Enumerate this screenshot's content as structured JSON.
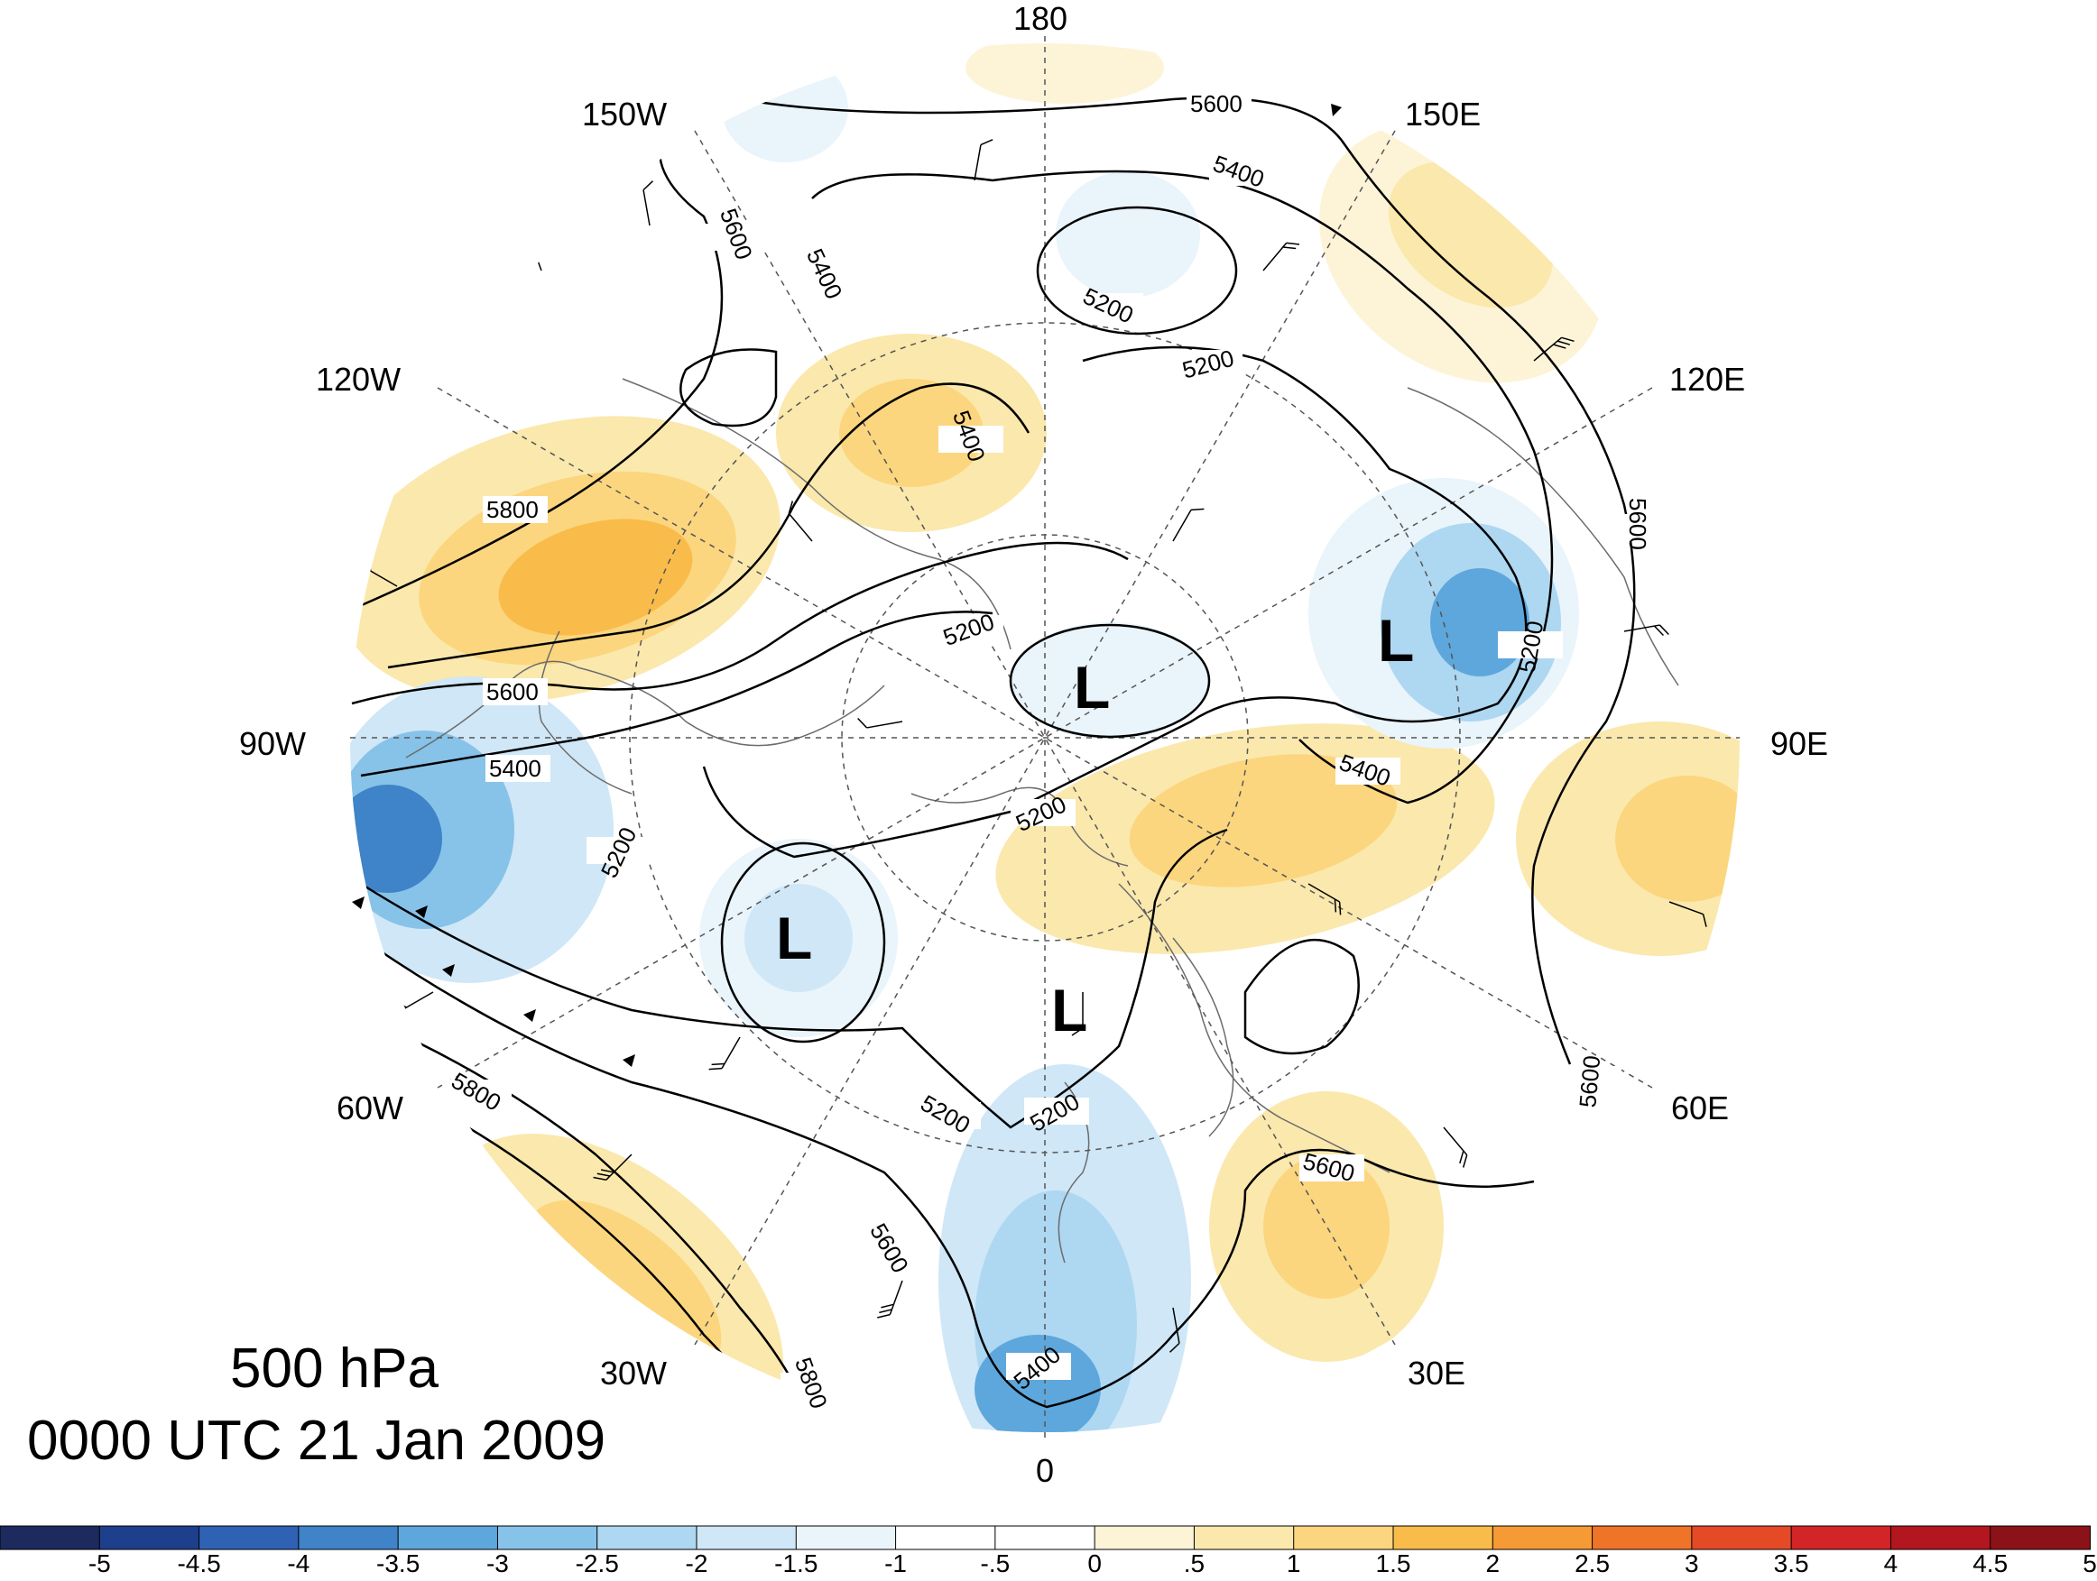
{
  "title": {
    "level": "500 hPa",
    "time": "0000 UTC 21 Jan 2009"
  },
  "longitude_labels": [
    {
      "id": "lon-180",
      "text": "180"
    },
    {
      "id": "lon-150w",
      "text": "150W"
    },
    {
      "id": "lon-150e",
      "text": "150E"
    },
    {
      "id": "lon-120w",
      "text": "120W"
    },
    {
      "id": "lon-120e",
      "text": "120E"
    },
    {
      "id": "lon-90w",
      "text": "90W"
    },
    {
      "id": "lon-90e",
      "text": "90E"
    },
    {
      "id": "lon-60w",
      "text": "60W"
    },
    {
      "id": "lon-60e",
      "text": "60E"
    },
    {
      "id": "lon-30w",
      "text": "30W"
    },
    {
      "id": "lon-30e",
      "text": "30E"
    },
    {
      "id": "lon-0",
      "text": "0"
    }
  ],
  "contour_labels": [
    "5200",
    "5400",
    "5600",
    "5800"
  ],
  "low_centers": [
    "L",
    "L",
    "L",
    "L"
  ],
  "colorbar": {
    "labels": [
      "-5",
      "-4.5",
      "-4",
      "-3.5",
      "-3",
      "-2.5",
      "-2",
      "-1.5",
      "-1",
      "-.5",
      "0",
      ".5",
      "1",
      "1.5",
      "2",
      "2.5",
      "3",
      "3.5",
      "4",
      "4.5",
      "5"
    ],
    "colors": [
      "#1c2a5e",
      "#1e3f8c",
      "#2f62b4",
      "#3f83c8",
      "#5ea7dc",
      "#87c2e8",
      "#aed7f1",
      "#cfe7f6",
      "#eaf4fb",
      "#ffffff",
      "#ffffff",
      "#fdf4d8",
      "#fbe8ad",
      "#fbd67e",
      "#f9bb4a",
      "#f69a35",
      "#f07428",
      "#e54a26",
      "#d32527",
      "#b3161f",
      "#8b1218"
    ]
  }
}
